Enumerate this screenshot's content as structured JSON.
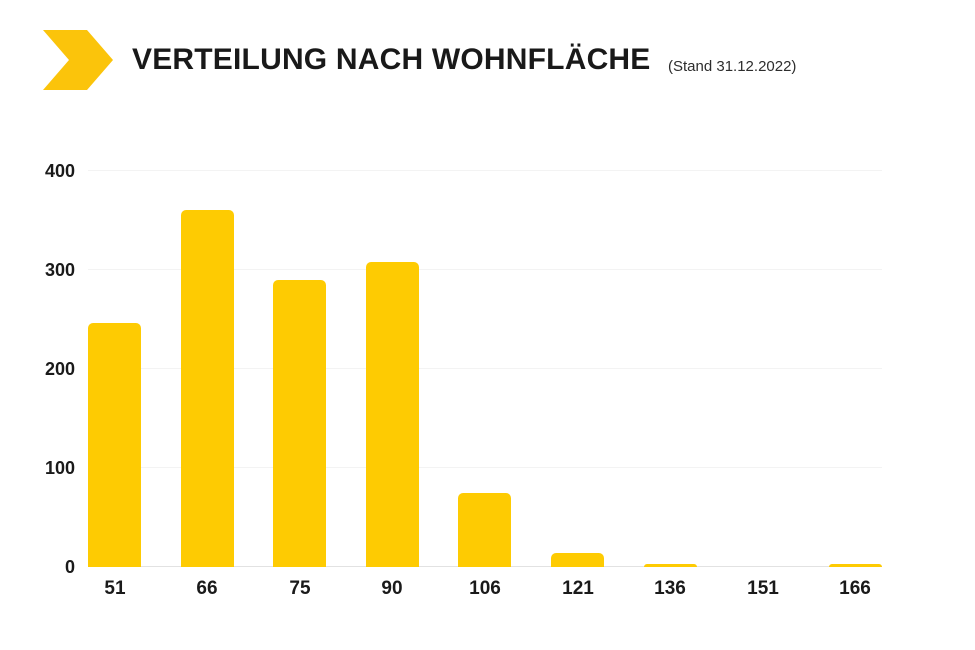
{
  "header": {
    "title": "VERTEILUNG NACH WOHNFLÄCHE",
    "subtitle": "(Stand 31.12.2022)",
    "logo_icon": "yellow-chevron-arrow"
  },
  "colors": {
    "background": "#ffffff",
    "logo_yellow": "#FBC40B",
    "bar_yellow": "#FECB02",
    "title_text": "#191919",
    "subtitle_text": "#2d2d2d",
    "axis_text": "#1a1a1a",
    "gridline": "#f3f3f3",
    "baseline": "#e2e2e2"
  },
  "chart_data": {
    "type": "bar",
    "title": "VERTEILUNG NACH WOHNFLÄCHE",
    "subtitle": "(Stand 31.12.2022)",
    "categories": [
      "51",
      "66",
      "75",
      "90",
      "106",
      "121",
      "136",
      "151",
      "166"
    ],
    "values": [
      246,
      361,
      290,
      308,
      75,
      14,
      3,
      0,
      3
    ],
    "xlabel": "",
    "ylabel": "",
    "ylim": [
      0,
      400
    ],
    "yticks": [
      0,
      100,
      200,
      300,
      400
    ],
    "grid": true,
    "legend_position": "none",
    "bar_color": "#FECB02"
  }
}
